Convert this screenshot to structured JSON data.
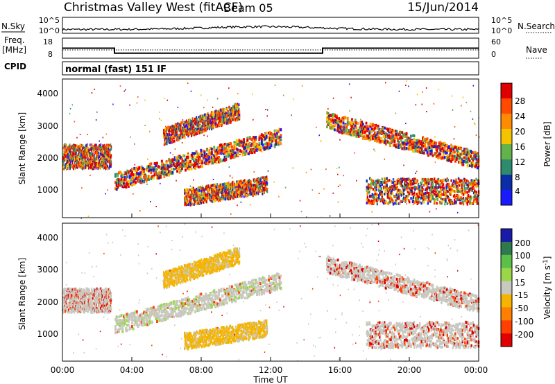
{
  "header": {
    "station": "Christmas Valley West (fitACF)",
    "beam": "Beam 05",
    "date": "15/Jun/2014"
  },
  "noise_panel": {
    "left_label": "N.Sky",
    "left_ticks": [
      "10^5",
      "10^0"
    ],
    "right_ticks": [
      "10^5",
      "10^0"
    ],
    "right_label": "N.Search"
  },
  "freq_panel": {
    "left_label_1": "Freq.",
    "left_label_2": "[MHz]",
    "left_ticks": [
      "18",
      "8"
    ],
    "right_ticks": [
      "60",
      "0"
    ],
    "right_label": "Nave"
  },
  "cpid": {
    "label": "CPID",
    "text": "normal (fast) 151 IF"
  },
  "power_panel": {
    "ylabel": "Slant Range [km]",
    "yticks": [
      "4000",
      "3000",
      "2000",
      "1000"
    ],
    "colorbar_label": "Power [dB]",
    "colorbar_ticks": [
      "28",
      "24",
      "20",
      "16",
      "12",
      "8",
      "4"
    ]
  },
  "velocity_panel": {
    "ylabel": "Slant Range [km]",
    "yticks": [
      "4000",
      "3000",
      "2000",
      "1000"
    ],
    "colorbar_label": "Velocity [m s",
    "colorbar_label_sup": "-1",
    "colorbar_label_end": "]",
    "colorbar_ticks": [
      "200",
      "100",
      "50",
      "15",
      "-15",
      "-50",
      "-100",
      "-200"
    ]
  },
  "x_axis": {
    "ticks": [
      "00:00",
      "04:00",
      "08:00",
      "12:00",
      "16:00",
      "20:00",
      "00:00"
    ],
    "label": "Time UT"
  },
  "colors": {
    "power_scale": [
      "#e00000",
      "#ff4a00",
      "#ff8c00",
      "#f5c400",
      "#63b24a",
      "#2e8b6e",
      "#0a2ea8",
      "#1a1aff"
    ],
    "velocity_scale": [
      "#1a1aa8",
      "#2e7a4e",
      "#5bc04a",
      "#9bd64a",
      "#c8c8c0",
      "#f5b400",
      "#ff8000",
      "#ff4000",
      "#e00000"
    ]
  },
  "chart_data": {
    "type": "heatmap",
    "x_range_hours": [
      0,
      24
    ],
    "y_range_km": [
      180,
      4500
    ],
    "freq_mhz": {
      "segments": [
        {
          "start_hour": 0,
          "end_hour": 3.0,
          "value": 13
        },
        {
          "start_hour": 3.0,
          "end_hour": 15.0,
          "value": 10.5
        },
        {
          "start_hour": 15.0,
          "end_hour": 24,
          "value": 13
        }
      ]
    },
    "features": [
      {
        "name": "early band",
        "start_hour": 0,
        "end_hour": 2.8,
        "range_km": [
          1700,
          2450
        ]
      },
      {
        "name": "rising band",
        "start_hour": 3.0,
        "end_hour": 12.6,
        "range_km_start": 1300,
        "range_km_end": 2700
      },
      {
        "name": "upper arc",
        "start_hour": 5.8,
        "end_hour": 10.2,
        "range_km_start": 2700,
        "range_km_end": 3500
      },
      {
        "name": "lower arc",
        "start_hour": 7.0,
        "end_hour": 11.8,
        "range_km_start": 800,
        "range_km_end": 1200
      },
      {
        "name": "evening band",
        "start_hour": 15.2,
        "end_hour": 24,
        "range_km_start": 3200,
        "range_km_end": 1950
      },
      {
        "name": "late low band",
        "start_hour": 17.5,
        "end_hour": 24,
        "range_km": [
          600,
          1400
        ]
      }
    ]
  }
}
